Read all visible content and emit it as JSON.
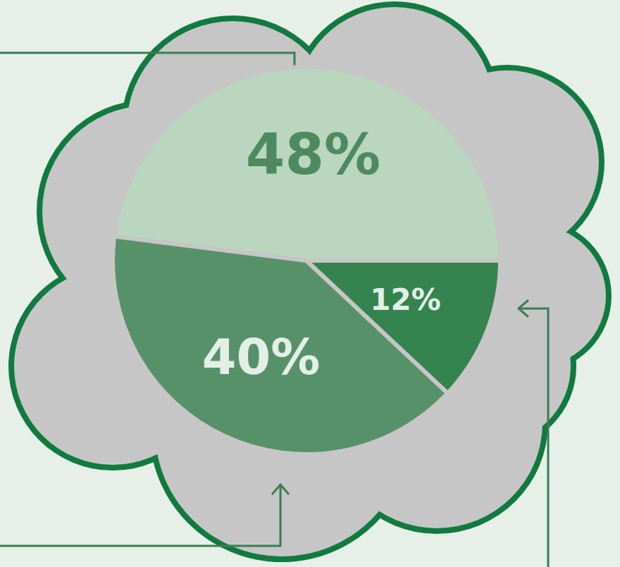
{
  "chart_data": {
    "type": "pie",
    "values": [
      48,
      40,
      12
    ],
    "value_labels": [
      "48%",
      "40%",
      "12%"
    ],
    "colors": [
      "#bad6bf",
      "#57916a",
      "#35834f"
    ],
    "data_labels": true
  }
}
